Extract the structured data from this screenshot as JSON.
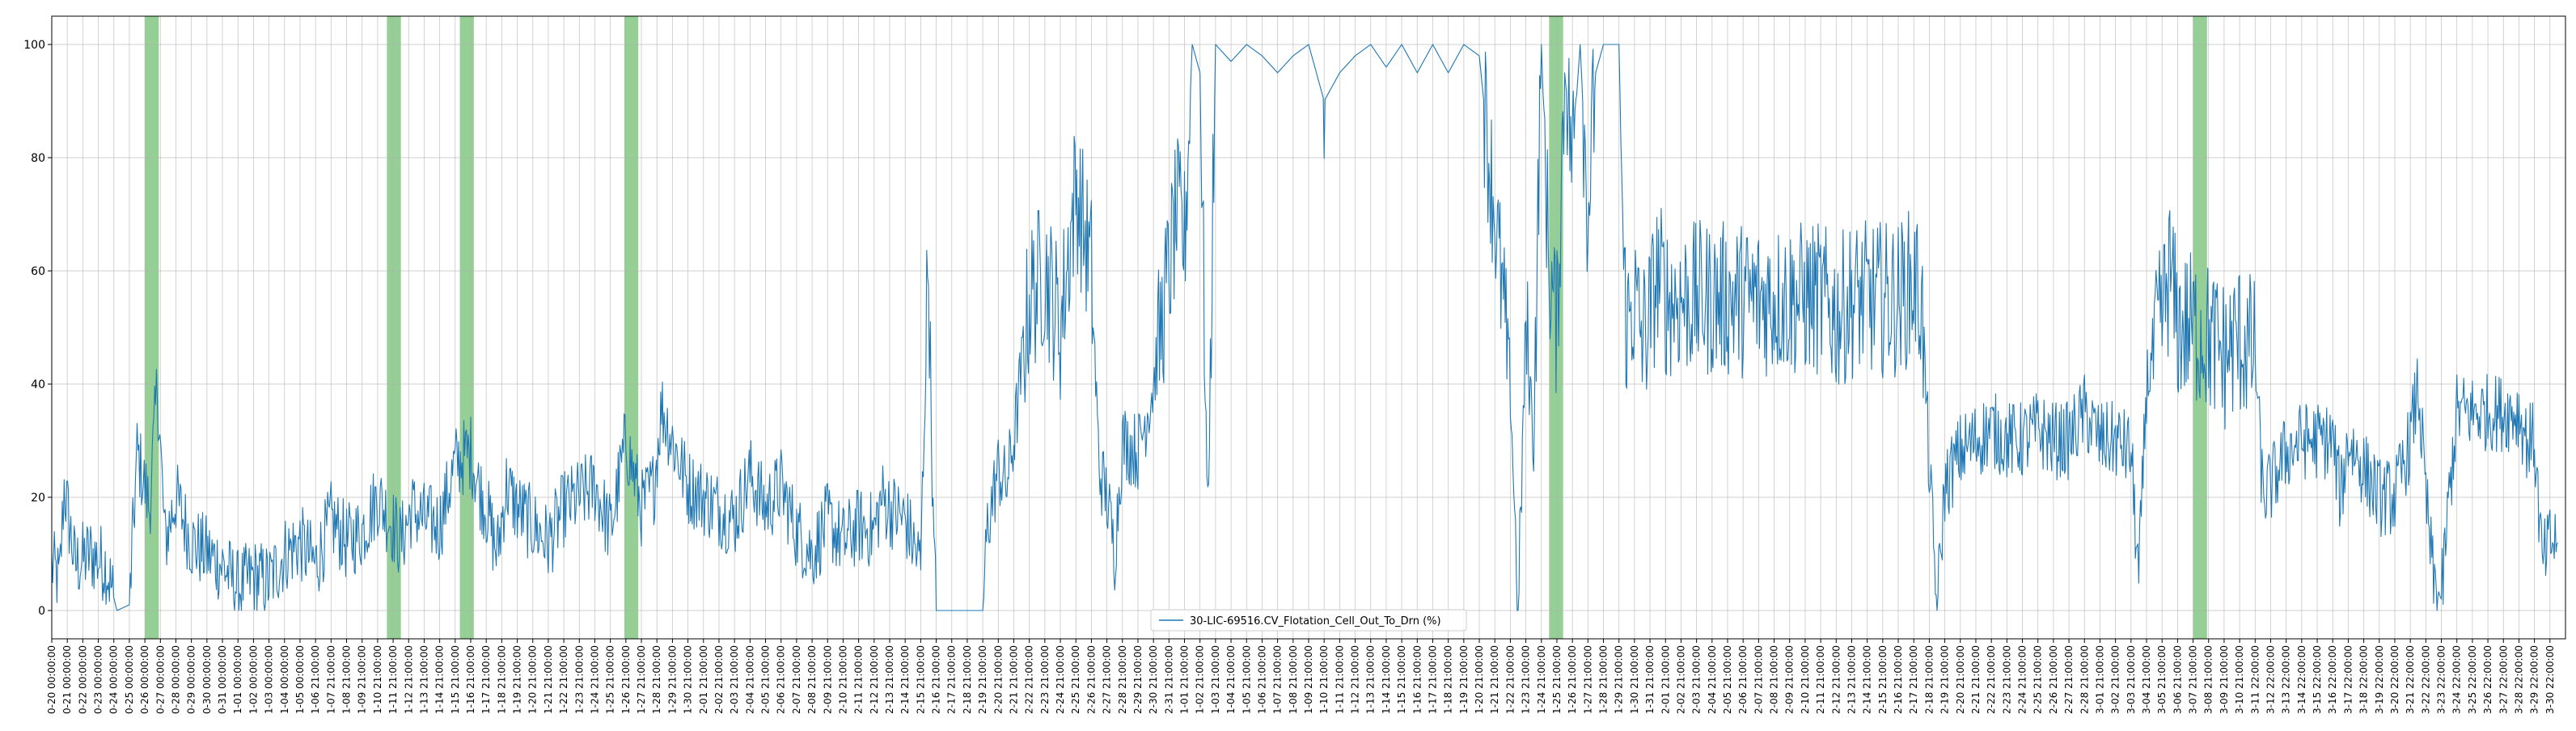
{
  "chart_data": {
    "type": "line",
    "series": [
      {
        "name": "30-LIC-69516.CV_Flotation_Cell_Out_To_Drn (%)",
        "color": "#1f77b4",
        "anchors": [
          [
            0,
            8
          ],
          [
            0.5,
            5
          ],
          [
            0.8,
            22
          ],
          [
            1.5,
            8
          ],
          [
            2.5,
            10
          ],
          [
            3.5,
            8
          ],
          [
            4.2,
            0
          ],
          [
            5,
            1
          ],
          [
            5.5,
            28
          ],
          [
            6.3,
            18
          ],
          [
            6.8,
            40
          ],
          [
            7.3,
            12
          ],
          [
            8,
            20
          ],
          [
            9,
            12
          ],
          [
            10,
            10
          ],
          [
            11,
            8
          ],
          [
            12,
            4
          ],
          [
            13,
            6
          ],
          [
            14,
            5
          ],
          [
            15,
            10
          ],
          [
            16,
            12
          ],
          [
            17,
            8
          ],
          [
            18,
            16
          ],
          [
            19,
            12
          ],
          [
            20,
            14
          ],
          [
            21,
            20
          ],
          [
            21.8,
            16
          ],
          [
            22.5,
            12
          ],
          [
            23.2,
            18
          ],
          [
            24,
            16
          ],
          [
            25,
            15
          ],
          [
            26,
            26
          ],
          [
            27,
            28
          ],
          [
            27.5,
            22
          ],
          [
            28,
            18
          ],
          [
            28.7,
            10
          ],
          [
            29.3,
            22
          ],
          [
            30,
            18
          ],
          [
            31,
            15
          ],
          [
            32,
            12
          ],
          [
            33,
            18
          ],
          [
            34,
            20
          ],
          [
            35,
            22
          ],
          [
            36,
            14
          ],
          [
            37,
            30
          ],
          [
            38,
            18
          ],
          [
            38.8,
            22
          ],
          [
            39.3,
            36
          ],
          [
            40,
            30
          ],
          [
            41,
            22
          ],
          [
            42,
            20
          ],
          [
            43,
            18
          ],
          [
            44,
            16
          ],
          [
            45,
            24
          ],
          [
            46,
            18
          ],
          [
            47,
            22
          ],
          [
            48,
            14
          ],
          [
            49,
            10
          ],
          [
            50,
            16
          ],
          [
            51,
            12
          ],
          [
            52,
            15
          ],
          [
            53,
            14
          ],
          [
            53.5,
            20
          ],
          [
            54,
            18
          ],
          [
            55,
            16
          ],
          [
            56,
            8
          ],
          [
            56.5,
            65
          ],
          [
            56.8,
            15
          ],
          [
            57,
            0
          ],
          [
            58,
            0
          ],
          [
            59,
            0
          ],
          [
            60,
            0
          ],
          [
            60.3,
            15
          ],
          [
            61,
            25
          ],
          [
            61.5,
            22
          ],
          [
            62,
            30
          ],
          [
            63,
            55
          ],
          [
            64,
            60
          ],
          [
            65,
            50
          ],
          [
            66,
            75
          ],
          [
            67,
            60
          ],
          [
            67.5,
            25
          ],
          [
            68,
            20
          ],
          [
            68.5,
            10
          ],
          [
            69,
            30
          ],
          [
            70,
            28
          ],
          [
            71,
            40
          ],
          [
            72,
            60
          ],
          [
            72.5,
            70
          ],
          [
            73,
            65
          ],
          [
            73.5,
            100
          ],
          [
            74,
            95
          ],
          [
            74.5,
            15
          ],
          [
            75,
            100
          ],
          [
            76,
            97
          ],
          [
            77,
            100
          ],
          [
            78,
            98
          ],
          [
            79,
            95
          ],
          [
            80,
            98
          ],
          [
            81,
            100
          ],
          [
            82,
            90
          ],
          [
            83,
            95
          ],
          [
            84,
            98
          ],
          [
            85,
            100
          ],
          [
            86,
            96
          ],
          [
            87,
            100
          ],
          [
            88,
            95
          ],
          [
            89,
            100
          ],
          [
            90,
            95
          ],
          [
            91,
            100
          ],
          [
            92,
            98
          ],
          [
            93,
            70
          ],
          [
            94,
            40
          ],
          [
            94.5,
            0
          ],
          [
            95,
            50
          ],
          [
            95.5,
            30
          ],
          [
            96,
            100
          ],
          [
            96.5,
            60
          ],
          [
            97,
            50
          ],
          [
            97.5,
            95
          ],
          [
            98,
            80
          ],
          [
            98.5,
            100
          ],
          [
            99,
            70
          ],
          [
            99.5,
            95
          ],
          [
            100,
            100
          ],
          [
            101,
            100
          ],
          [
            101.3,
            60
          ],
          [
            101.5,
            50
          ],
          [
            102,
            55
          ],
          [
            102.5,
            48
          ],
          [
            103,
            52
          ],
          [
            103.5,
            60
          ],
          [
            104,
            55
          ],
          [
            105,
            55
          ],
          [
            106,
            55
          ],
          [
            107,
            55
          ],
          [
            108,
            55
          ],
          [
            109,
            55
          ],
          [
            110,
            55
          ],
          [
            111,
            55
          ],
          [
            112,
            55
          ],
          [
            113,
            55
          ],
          [
            114,
            55
          ],
          [
            115,
            52
          ],
          [
            116,
            55
          ],
          [
            117,
            55
          ],
          [
            118,
            55
          ],
          [
            119,
            55
          ],
          [
            120,
            58
          ],
          [
            120.5,
            55
          ],
          [
            121,
            25
          ],
          [
            121.5,
            0
          ],
          [
            122,
            22
          ],
          [
            123,
            28
          ],
          [
            124,
            30
          ],
          [
            125,
            32
          ],
          [
            126,
            30
          ],
          [
            127,
            30
          ],
          [
            128,
            32
          ],
          [
            129,
            30
          ],
          [
            130,
            30
          ],
          [
            131,
            35
          ],
          [
            132,
            30
          ],
          [
            133,
            30
          ],
          [
            134,
            28
          ],
          [
            134.5,
            5
          ],
          [
            135,
            40
          ],
          [
            136,
            52
          ],
          [
            136.5,
            60
          ],
          [
            137,
            50
          ],
          [
            138,
            50
          ],
          [
            139,
            48
          ],
          [
            140,
            45
          ],
          [
            141,
            48
          ],
          [
            142,
            45
          ],
          [
            142.5,
            20
          ],
          [
            143,
            22
          ],
          [
            144,
            28
          ],
          [
            145,
            30
          ],
          [
            146,
            30
          ],
          [
            147,
            30
          ],
          [
            147.5,
            20
          ],
          [
            148,
            30
          ],
          [
            149,
            25
          ],
          [
            150,
            20
          ],
          [
            151,
            20
          ],
          [
            152,
            30
          ],
          [
            152.5,
            40
          ],
          [
            153,
            20
          ],
          [
            153.5,
            5
          ],
          [
            154,
            2
          ],
          [
            154.5,
            20
          ],
          [
            155,
            35
          ],
          [
            156,
            35
          ],
          [
            157,
            35
          ],
          [
            158,
            35
          ],
          [
            159,
            35
          ],
          [
            159.5,
            30
          ],
          [
            160,
            30
          ],
          [
            160.5,
            8
          ],
          [
            161,
            12
          ],
          [
            161.5,
            12
          ]
        ]
      }
    ],
    "x_count": 162,
    "ylim": [
      -5,
      105
    ],
    "xlim": [
      0,
      162
    ],
    "y_ticks": [
      0,
      20,
      40,
      60,
      80,
      100
    ],
    "x_tick_labels": [
      "0-20 00:00:00",
      "0-21 00:00:00",
      "0-22 00:00:00",
      "0-23 00:00:00",
      "0-24 00:00:00",
      "0-25 00:00:00",
      "0-26 00:00:00",
      "0-27 00:00:00",
      "0-28 00:00:00",
      "0-29 00:00:00",
      "0-30 00:00:00",
      "0-31 00:00:00",
      "1-01 00:00:00",
      "1-02 00:00:00",
      "1-03 00:00:00",
      "1-04 00:00:00",
      "1-05 00:00:00",
      "1-06 21:00:00",
      "1-07 21:00:00",
      "1-08 21:00:00",
      "1-09 21:00:00",
      "1-10 21:00:00",
      "1-11 21:00:00",
      "1-12 21:00:00",
      "1-13 21:00:00",
      "1-14 21:00:00",
      "1-15 21:00:00",
      "1-16 21:00:00",
      "1-17 21:00:00",
      "1-18 21:00:00",
      "1-19 21:00:00",
      "1-20 21:00:00",
      "1-21 21:00:00",
      "1-22 21:00:00",
      "1-23 21:00:00",
      "1-24 21:00:00",
      "1-25 21:00:00",
      "1-26 21:00:00",
      "1-27 21:00:00",
      "1-28 21:00:00",
      "1-29 21:00:00",
      "1-30 21:00:00",
      "2-01 21:00:00",
      "2-02 21:00:00",
      "2-03 21:00:00",
      "2-04 21:00:00",
      "2-05 21:00:00",
      "2-06 21:00:00",
      "2-07 21:00:00",
      "2-08 21:00:00",
      "2-09 21:00:00",
      "2-10 21:00:00",
      "2-11 21:00:00",
      "2-12 21:00:00",
      "2-13 21:00:00",
      "2-14 21:00:00",
      "2-15 21:00:00",
      "2-16 21:00:00",
      "2-17 21:00:00",
      "2-18 21:00:00",
      "2-19 21:00:00",
      "2-20 21:00:00",
      "2-21 21:00:00",
      "2-22 21:00:00",
      "2-23 21:00:00",
      "2-24 21:00:00",
      "2-25 21:00:00",
      "2-26 21:00:00",
      "2-27 21:00:00",
      "2-28 21:00:00",
      "2-29 21:00:00",
      "2-30 21:00:00",
      "2-31 21:00:00",
      "1-01 21:00:00",
      "1-02 21:00:00",
      "1-03 21:00:00",
      "1-04 21:00:00",
      "1-05 21:00:00",
      "1-06 21:00:00",
      "1-07 21:00:00",
      "1-08 21:00:00",
      "1-09 21:00:00",
      "1-10 21:00:00",
      "1-11 21:00:00",
      "1-12 21:00:00",
      "1-13 21:00:00",
      "1-14 21:00:00",
      "1-15 21:00:00",
      "1-16 21:00:00",
      "1-17 21:00:00",
      "1-18 21:00:00",
      "1-19 21:00:00",
      "1-20 21:00:00",
      "1-21 21:00:00",
      "1-22 21:00:00",
      "1-23 21:00:00",
      "1-24 21:00:00",
      "1-25 21:00:00",
      "1-26 21:00:00",
      "1-27 21:00:00",
      "1-28 21:00:00",
      "1-29 21:00:00",
      "1-30 21:00:00",
      "1-31 21:00:00",
      "2-01 21:00:00",
      "2-02 21:00:00",
      "2-03 21:00:00",
      "2-04 21:00:00",
      "2-05 21:00:00",
      "2-06 21:00:00",
      "2-07 21:00:00",
      "2-08 21:00:00",
      "2-09 21:00:00",
      "2-10 21:00:00",
      "2-11 21:00:00",
      "2-12 21:00:00",
      "2-13 21:00:00",
      "2-14 21:00:00",
      "2-15 21:00:00",
      "2-16 21:00:00",
      "2-17 21:00:00",
      "2-18 21:00:00",
      "2-19 21:00:00",
      "2-20 21:00:00",
      "2-21 21:00:00",
      "2-22 21:00:00",
      "2-23 21:00:00",
      "2-24 21:00:00",
      "2-25 21:00:00",
      "2-26 21:00:00",
      "2-27 21:00:00",
      "2-28 21:00:00",
      "3-01 21:00:00",
      "3-02 21:00:00",
      "3-03 21:00:00",
      "3-04 21:00:00",
      "3-05 21:00:00",
      "3-06 21:00:00",
      "3-07 21:00:00",
      "3-08 21:00:00",
      "3-09 21:00:00",
      "3-10 21:00:00",
      "3-11 22:00:00",
      "3-12 22:00:00",
      "3-13 22:00:00",
      "3-14 22:00:00",
      "3-15 22:00:00",
      "3-16 22:00:00",
      "3-17 22:00:00",
      "3-18 22:00:00",
      "3-19 22:00:00",
      "3-20 22:00:00",
      "3-21 22:00:00",
      "3-22 22:00:00",
      "3-23 22:00:00",
      "3-24 22:00:00",
      "3-25 22:00:00",
      "3-26 22:00:00",
      "3-27 22:00:00",
      "3-28 22:00:00",
      "3-29 22:00:00",
      "3-30 22:00:00"
    ],
    "highlight_bands": [
      {
        "start": 6.0,
        "end": 6.9
      },
      {
        "start": 21.6,
        "end": 22.5
      },
      {
        "start": 26.3,
        "end": 27.2
      },
      {
        "start": 36.9,
        "end": 37.8
      },
      {
        "start": 96.5,
        "end": 97.4
      },
      {
        "start": 138.0,
        "end": 138.9
      }
    ],
    "highlight_color": "#2ca02c",
    "grid": true,
    "legend_placement": "lower center",
    "title": "",
    "xlabel": "",
    "ylabel": ""
  }
}
